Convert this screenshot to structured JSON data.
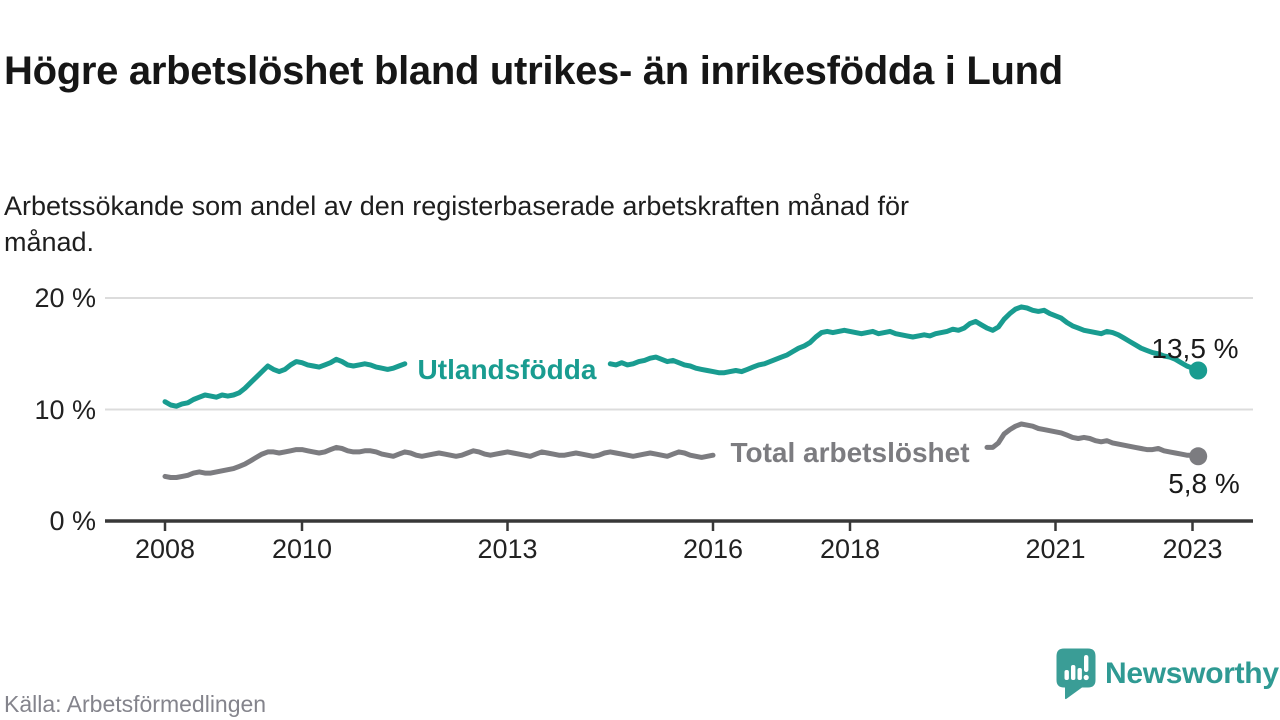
{
  "title": "Högre arbetslöshet bland utrikes- än inrikesfödda i Lund",
  "subtitle": "Arbetssökande som andel av den registerbaserade arbetskraften månad för månad.",
  "footer": {
    "source": "Källa: Arbetsförmedlingen",
    "brand": "Newsworthy",
    "brand_color": "#2f9a93"
  },
  "chart_data": {
    "type": "line",
    "title": "Högre arbetslöshet bland utrikes- än inrikesfödda i Lund",
    "subtitle": "Arbetssökande som andel av den registerbaserade arbetskraften månad för månad.",
    "x_unit": "month",
    "x_start": "2008-01",
    "x_end": "2023-02",
    "x_ticks": [
      "2008",
      "2010",
      "2013",
      "2016",
      "2018",
      "2021",
      "2023"
    ],
    "y_ticks": [
      20,
      10,
      0
    ],
    "y_tick_labels": [
      "20 %",
      "10 %",
      "0 %"
    ],
    "ylim": [
      0,
      21.5
    ],
    "unit": "%",
    "grid": "horizontal",
    "legend_position": "inline-on-line",
    "series": [
      {
        "id": "utlandsfodda",
        "name": "Utlandsfödda",
        "color": "#199c90",
        "end_value": 13.5,
        "end_label": "13,5 %",
        "inline_label": {
          "text": "Utlandsfödda",
          "gap_start_index": 42,
          "gap_end_index": 78
        },
        "values": [
          10.7,
          10.4,
          10.3,
          10.5,
          10.6,
          10.9,
          11.1,
          11.3,
          11.2,
          11.1,
          11.3,
          11.2,
          11.3,
          11.5,
          11.9,
          12.4,
          12.9,
          13.4,
          13.9,
          13.6,
          13.4,
          13.6,
          14.0,
          14.3,
          14.2,
          14.0,
          13.9,
          13.8,
          14.0,
          14.2,
          14.5,
          14.3,
          14.0,
          13.9,
          14.0,
          14.1,
          14.0,
          13.8,
          13.7,
          13.6,
          13.7,
          13.9,
          14.1,
          13.9,
          13.7,
          13.6,
          13.7,
          13.8,
          13.7,
          13.6,
          13.5,
          13.4,
          13.5,
          13.7,
          13.9,
          13.8,
          13.6,
          13.5,
          13.6,
          13.7,
          13.8,
          13.7,
          13.6,
          13.7,
          13.8,
          14.0,
          14.2,
          14.1,
          13.9,
          13.8,
          13.9,
          14.0,
          14.1,
          14.0,
          13.9,
          14.0,
          14.1,
          14.2,
          14.1,
          14.0,
          14.2,
          14.0,
          14.1,
          14.3,
          14.4,
          14.6,
          14.7,
          14.5,
          14.3,
          14.4,
          14.2,
          14.0,
          13.9,
          13.7,
          13.6,
          13.5,
          13.4,
          13.3,
          13.3,
          13.4,
          13.5,
          13.4,
          13.6,
          13.8,
          14.0,
          14.1,
          14.3,
          14.5,
          14.7,
          14.9,
          15.2,
          15.5,
          15.7,
          16.0,
          16.5,
          16.9,
          17.0,
          16.9,
          17.0,
          17.1,
          17.0,
          16.9,
          16.8,
          16.9,
          17.0,
          16.8,
          16.9,
          17.0,
          16.8,
          16.7,
          16.6,
          16.5,
          16.6,
          16.7,
          16.6,
          16.8,
          16.9,
          17.0,
          17.2,
          17.1,
          17.3,
          17.7,
          17.9,
          17.6,
          17.3,
          17.1,
          17.4,
          18.1,
          18.6,
          19.0,
          19.2,
          19.1,
          18.9,
          18.8,
          18.9,
          18.6,
          18.4,
          18.2,
          17.8,
          17.5,
          17.3,
          17.1,
          17.0,
          16.9,
          16.8,
          17.0,
          16.9,
          16.7,
          16.4,
          16.1,
          15.8,
          15.5,
          15.3,
          15.1,
          15.0,
          14.8,
          14.7,
          14.5,
          14.2,
          13.9,
          13.7,
          13.5
        ]
      },
      {
        "id": "total-arbetsloshet",
        "name": "Total arbetslöshet",
        "color": "#7c7c80",
        "end_value": 5.8,
        "end_label": "5,8 %",
        "inline_label": {
          "text": "Total arbetslöshet",
          "gap_start_index": 96,
          "gap_end_index": 144
        },
        "values": [
          4.0,
          3.9,
          3.9,
          4.0,
          4.1,
          4.3,
          4.4,
          4.3,
          4.3,
          4.4,
          4.5,
          4.6,
          4.7,
          4.9,
          5.1,
          5.4,
          5.7,
          6.0,
          6.2,
          6.2,
          6.1,
          6.2,
          6.3,
          6.4,
          6.4,
          6.3,
          6.2,
          6.1,
          6.2,
          6.4,
          6.6,
          6.5,
          6.3,
          6.2,
          6.2,
          6.3,
          6.3,
          6.2,
          6.0,
          5.9,
          5.8,
          6.0,
          6.2,
          6.1,
          5.9,
          5.8,
          5.9,
          6.0,
          6.1,
          6.0,
          5.9,
          5.8,
          5.9,
          6.1,
          6.3,
          6.2,
          6.0,
          5.9,
          6.0,
          6.1,
          6.2,
          6.1,
          6.0,
          5.9,
          5.8,
          6.0,
          6.2,
          6.1,
          6.0,
          5.9,
          5.9,
          6.0,
          6.1,
          6.0,
          5.9,
          5.8,
          5.9,
          6.1,
          6.2,
          6.1,
          6.0,
          5.9,
          5.8,
          5.9,
          6.0,
          6.1,
          6.0,
          5.9,
          5.8,
          6.0,
          6.2,
          6.1,
          5.9,
          5.8,
          5.7,
          5.8,
          5.9,
          5.9,
          5.8,
          5.9,
          6.0,
          6.1,
          6.3,
          6.2,
          6.1,
          6.0,
          6.1,
          6.2,
          6.2,
          6.1,
          6.1,
          6.2,
          6.3,
          6.4,
          6.5,
          6.4,
          6.3,
          6.2,
          6.2,
          6.3,
          6.3,
          6.2,
          6.1,
          6.2,
          6.3,
          6.4,
          6.5,
          6.4,
          6.3,
          6.2,
          6.3,
          6.4,
          6.4,
          6.3,
          6.3,
          6.4,
          6.5,
          6.6,
          6.7,
          6.6,
          6.5,
          6.4,
          6.5,
          6.5,
          6.6,
          6.6,
          7.0,
          7.8,
          8.2,
          8.5,
          8.7,
          8.6,
          8.5,
          8.3,
          8.2,
          8.1,
          8.0,
          7.9,
          7.7,
          7.5,
          7.4,
          7.5,
          7.4,
          7.2,
          7.1,
          7.2,
          7.0,
          6.9,
          6.8,
          6.7,
          6.6,
          6.5,
          6.4,
          6.4,
          6.5,
          6.3,
          6.2,
          6.1,
          6.0,
          5.9,
          5.9,
          5.8
        ]
      }
    ]
  }
}
